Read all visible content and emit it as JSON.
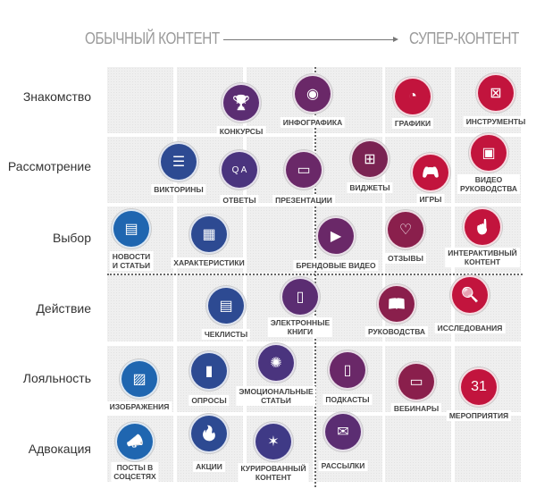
{
  "header": {
    "left": "ОБЫЧНЫЙ КОНТЕНТ",
    "right": "СУПЕР-КОНТЕНТ"
  },
  "stages": [
    "Знакомство",
    "Рассмотрение",
    "Выбор",
    "Действие",
    "Лояльность",
    "Адвокация"
  ],
  "colors": {
    "blue": "#1f66b0",
    "navy": "#2d4a92",
    "indigo": "#3f3a86",
    "purple": "#5b2d72",
    "plum": "#7a2352",
    "red": "#c2143d"
  },
  "items": [
    {
      "label": "КОНКУРСЫ",
      "icon": "trophy-icon",
      "glyph": "🏆",
      "color": "#5b2d72"
    },
    {
      "label": "ИНФОГРАФИКА",
      "icon": "eye-window-icon",
      "glyph": "◉",
      "color": "#6a2868"
    },
    {
      "label": "ГРАФИКИ",
      "icon": "pie-chart-icon",
      "glyph": "◔",
      "color": "#c2143d"
    },
    {
      "label": "ИНСТРУМЕНТЫ",
      "icon": "laptop-icon",
      "glyph": "⊠",
      "color": "#c2143d"
    },
    {
      "label": "ВИКТОРИНЫ",
      "icon": "list-icon",
      "glyph": "☰",
      "color": "#2d4a92"
    },
    {
      "label": "ОТВЕТЫ",
      "icon": "qa-icon",
      "glyph": "Q A",
      "color": "#4a347e"
    },
    {
      "label": "ПРЕЗЕНТАЦИИ",
      "icon": "presentation-icon",
      "glyph": "▭",
      "color": "#6a2868"
    },
    {
      "label": "ВИДЖЕТЫ",
      "icon": "widget-icon",
      "glyph": "⊞",
      "color": "#7a2352"
    },
    {
      "label": "ИГРЫ",
      "icon": "gamepad-icon",
      "glyph": "🎮",
      "color": "#c2143d"
    },
    {
      "label": "ВИДЕО\nРУКОВОДСТВА",
      "icon": "video-tutorial-icon",
      "glyph": "▣",
      "color": "#c2143d"
    },
    {
      "label": "НОВОСТИ\nИ СТАТЬИ",
      "icon": "news-icon",
      "glyph": "▤",
      "color": "#1f66b0"
    },
    {
      "label": "ХАРАКТЕРИСТИКИ",
      "icon": "specs-icon",
      "glyph": "▦",
      "color": "#2d4a92"
    },
    {
      "label": "БРЕНДОВЫЕ ВИДЕО",
      "icon": "video-icon",
      "glyph": "▶",
      "color": "#6a2868"
    },
    {
      "label": "ОТЗЫВЫ",
      "icon": "review-icon",
      "glyph": "♡",
      "color": "#8a1f4c"
    },
    {
      "label": "ИНТЕРАКТИВНЫЙ\nКОНТЕНТ",
      "icon": "interactive-icon",
      "glyph": "☝",
      "color": "#c2143d"
    },
    {
      "label": "ЧЕКЛИСТЫ",
      "icon": "checklist-icon",
      "glyph": "▤",
      "color": "#2d4a92"
    },
    {
      "label": "ЭЛЕКТРОННЫЕ\nКНИГИ",
      "icon": "ebook-icon",
      "glyph": "▯",
      "color": "#5b2d72"
    },
    {
      "label": "РУКОВОДСТВА",
      "icon": "book-icon",
      "glyph": "📖",
      "color": "#8a1f4c"
    },
    {
      "label": "ИССЛЕДОВАНИЯ",
      "icon": "research-icon",
      "glyph": "🔍",
      "color": "#c2143d"
    },
    {
      "label": "ИЗОБРАЖЕНИЯ",
      "icon": "image-icon",
      "glyph": "▨",
      "color": "#1f66b0"
    },
    {
      "label": "ОПРОСЫ",
      "icon": "bar-chart-icon",
      "glyph": "▮",
      "color": "#2d4a92"
    },
    {
      "label": "ЭМОЦИОНАЛЬНЫЕ\nСТАТЬИ",
      "icon": "network-person-icon",
      "glyph": "✺",
      "color": "#4a347e"
    },
    {
      "label": "ПОДКАСТЫ",
      "icon": "phone-icon",
      "glyph": "▯",
      "color": "#6a2868"
    },
    {
      "label": "ВЕБИНАРЫ",
      "icon": "webinar-icon",
      "glyph": "▭",
      "color": "#8a1f4c"
    },
    {
      "label": "МЕРОПРИЯТИЯ",
      "icon": "calendar-icon",
      "glyph": "31",
      "color": "#c2143d"
    },
    {
      "label": "ПОСТЫ В\nСОЦСЕТЯХ",
      "icon": "megaphone-icon",
      "glyph": "📣",
      "color": "#1f66b0"
    },
    {
      "label": "АКЦИИ",
      "icon": "flame-icon",
      "glyph": "🔥",
      "color": "#2d4a92"
    },
    {
      "label": "КУРИРОВАННЫЙ\nКОНТЕНТ",
      "icon": "network-icon",
      "glyph": "✶",
      "color": "#3f3a86"
    },
    {
      "label": "РАССЫЛКИ",
      "icon": "mail-icon",
      "glyph": "✉",
      "color": "#5b2d72"
    }
  ]
}
